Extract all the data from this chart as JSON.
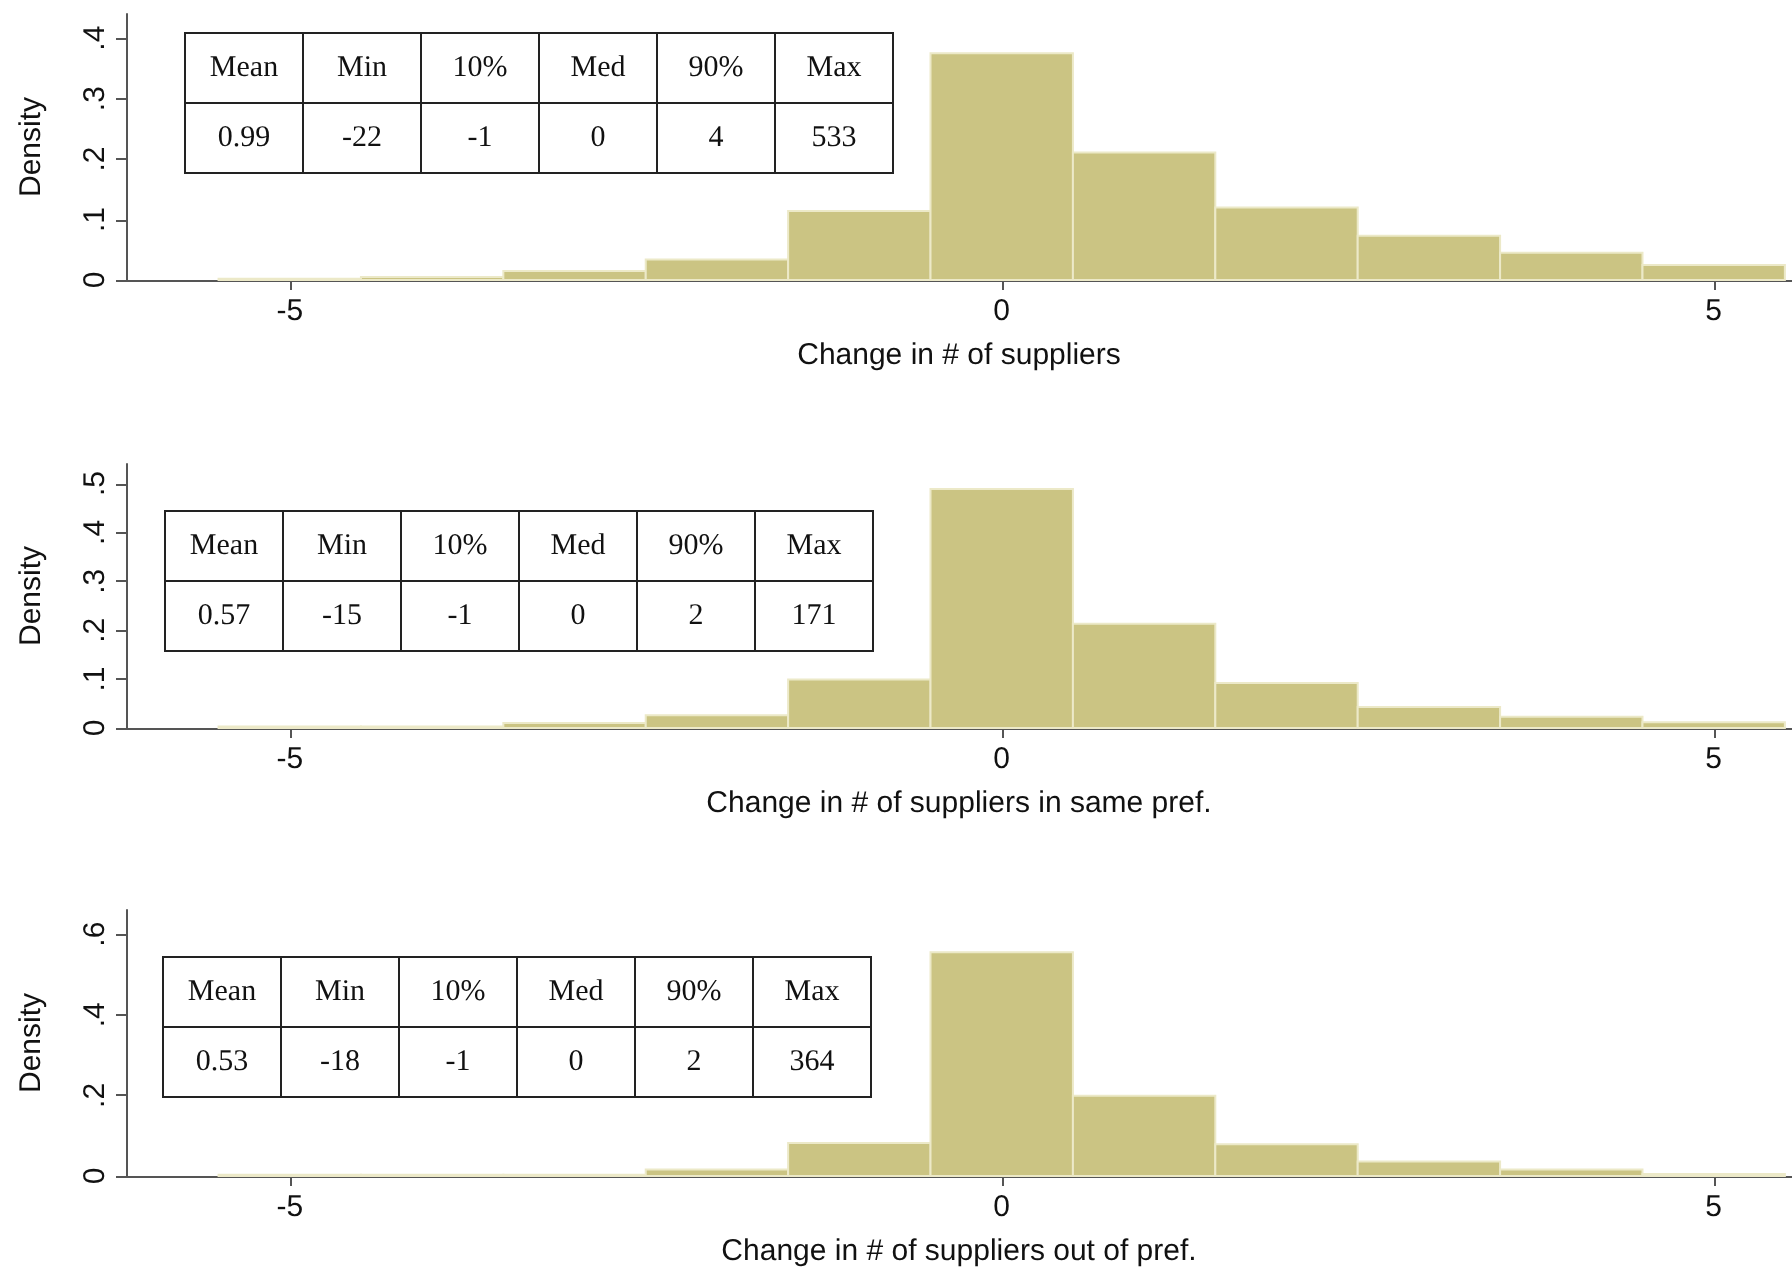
{
  "chart_data": [
    {
      "type": "histogram",
      "xlabel": "Change in # of suppliers",
      "ylabel": "Density",
      "color": "#cbc483",
      "bins": [
        -5.5,
        -4.5,
        -3.5,
        -2.5,
        -1.5,
        -0.5,
        0.5,
        1.5,
        2.5,
        3.5,
        4.5,
        5.5
      ],
      "values": [
        0.002,
        0.005,
        0.015,
        0.034,
        0.114,
        0.375,
        0.211,
        0.12,
        0.073,
        0.045,
        0.025
      ],
      "xlim": [
        -6.15,
        5.55
      ],
      "xticks": [
        -5,
        0,
        5
      ],
      "ylim": [
        0,
        0.44
      ],
      "yticks": [
        {
          "value": 0,
          "label": "0"
        },
        {
          "value": 0.1,
          "label": ".1"
        },
        {
          "value": 0.2,
          "label": ".2"
        },
        {
          "value": 0.3,
          "label": ".3"
        },
        {
          "value": 0.4,
          "label": ".4"
        }
      ],
      "annotations": [
        "Mean",
        "Min",
        "10%",
        "Med",
        "90%",
        "Max",
        "0.99",
        "-22",
        "-1",
        "0",
        "4",
        "533"
      ]
    },
    {
      "type": "histogram",
      "xlabel": "Change in # of suppliers in same pref.",
      "ylabel": "Density",
      "color": "#cbc483",
      "bins": [
        -5.5,
        -4.5,
        -3.5,
        -2.5,
        -1.5,
        -0.5,
        0.5,
        1.5,
        2.5,
        3.5,
        4.5,
        5.5
      ],
      "values": [
        0.003,
        0.003,
        0.01,
        0.026,
        0.099,
        0.489,
        0.213,
        0.092,
        0.043,
        0.023,
        0.012
      ],
      "xlim": [
        -6.15,
        5.55
      ],
      "xticks": [
        -5,
        0,
        5
      ],
      "ylim": [
        0,
        0.54
      ],
      "yticks": [
        {
          "value": 0,
          "label": "0"
        },
        {
          "value": 0.1,
          "label": ".1"
        },
        {
          "value": 0.2,
          "label": ".2"
        },
        {
          "value": 0.3,
          "label": ".3"
        },
        {
          "value": 0.4,
          "label": ".4"
        },
        {
          "value": 0.5,
          "label": ".5"
        }
      ],
      "annotations": [
        "Mean",
        "Min",
        "10%",
        "Med",
        "90%",
        "Max",
        "0.57",
        "-15",
        "-1",
        "0",
        "2",
        "171"
      ]
    },
    {
      "type": "histogram",
      "xlabel": "Change in # of suppliers out of pref.",
      "ylabel": "Density",
      "color": "#cbc483",
      "bins": [
        -5.5,
        -4.5,
        -3.5,
        -2.5,
        -1.5,
        -0.5,
        0.5,
        1.5,
        2.5,
        3.5,
        4.5,
        5.5
      ],
      "values": [
        0.003,
        0.003,
        0.003,
        0.016,
        0.082,
        0.555,
        0.199,
        0.079,
        0.036,
        0.016,
        0.005
      ],
      "xlim": [
        -6.15,
        5.55
      ],
      "xticks": [
        -5,
        0,
        5
      ],
      "ylim": [
        0,
        0.66
      ],
      "yticks": [
        {
          "value": 0,
          "label": "0"
        },
        {
          "value": 0.2,
          "label": ".2"
        },
        {
          "value": 0.4,
          "label": ".4"
        },
        {
          "value": 0.6,
          "label": ".6"
        }
      ],
      "annotations": [
        "Mean",
        "Min",
        "10%",
        "Med",
        "90%",
        "Max",
        "0.53",
        "-18",
        "-1",
        "0",
        "2",
        "364"
      ]
    }
  ]
}
